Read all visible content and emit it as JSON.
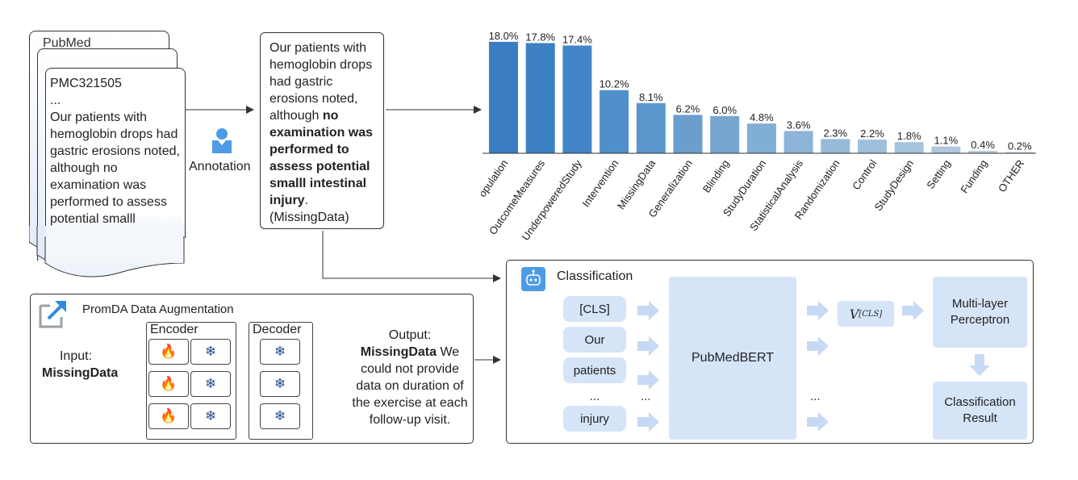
{
  "pubmed": {
    "title": "PubMed",
    "doc_id": "PMC321505",
    "ellipsis": "...",
    "excerpt": "Our patients with hemoglobin drops had gastric erosions noted, although no examination was performed to assess potential smalll intestinal injury."
  },
  "annotation": {
    "label": "Annotation",
    "icon": "person-icon",
    "box": {
      "normal": "Our patients with hemoglobin drops had gastric erosions noted, although",
      "bold": "no examination was performed to assess potential smalll intestinal injury",
      "end": ".",
      "tag": "(MissingData)"
    }
  },
  "chart_data": {
    "type": "bar",
    "categories": [
      "Population",
      "OutcomeMeasures",
      "UnderpoweredStudy",
      "Intervention",
      "MissingData",
      "Generalization",
      "Blinding",
      "StudyDuration",
      "StatisticalAnalysis",
      "Randomization",
      "Control",
      "StudyDesign",
      "Setting",
      "Funding",
      "OTHER"
    ],
    "values": [
      18.0,
      17.8,
      17.4,
      10.2,
      8.1,
      6.2,
      6.0,
      4.8,
      3.6,
      2.3,
      2.2,
      1.8,
      1.1,
      0.4,
      0.2
    ],
    "value_labels": [
      "18.0%",
      "17.8%",
      "17.4%",
      "10.2%",
      "8.1%",
      "6.2%",
      "6.0%",
      "4.8%",
      "3.6%",
      "2.3%",
      "2.2%",
      "1.8%",
      "1.1%",
      "0.4%",
      "0.2%"
    ],
    "colors": [
      "#3a7dc2",
      "#3d80c4",
      "#4285c6",
      "#4f8fca",
      "#5a96cc",
      "#6a9fcd",
      "#75a6cf",
      "#81aed3",
      "#8cb4d6",
      "#96bad8",
      "#9ebfda",
      "#a6c4dc",
      "#afc8dd",
      "#b8cddf",
      "#c0d2e1"
    ],
    "ylim": [
      0,
      18.5
    ]
  },
  "promda": {
    "title": "PromDA Data Augmentation",
    "encoder": "Encoder",
    "decoder": "Decoder",
    "input_label": "Input:",
    "input_value": "MissingData",
    "output_label": "Output:",
    "output_bold": "MissingData",
    "output_text": "We could not provide data on duration of the exercise at each follow-up visit.",
    "fire_glyph": "🔥",
    "snow_glyph": "❄"
  },
  "classification": {
    "title": "Classification",
    "tokens": [
      "[CLS]",
      "Our",
      "patients",
      "...",
      "injury"
    ],
    "ellipsis": "...",
    "model": "PubMedBERT",
    "vector": "V",
    "vector_sub": "[CLS]",
    "mlp": "Multi-layer Perceptron",
    "result": "Classification Result"
  }
}
